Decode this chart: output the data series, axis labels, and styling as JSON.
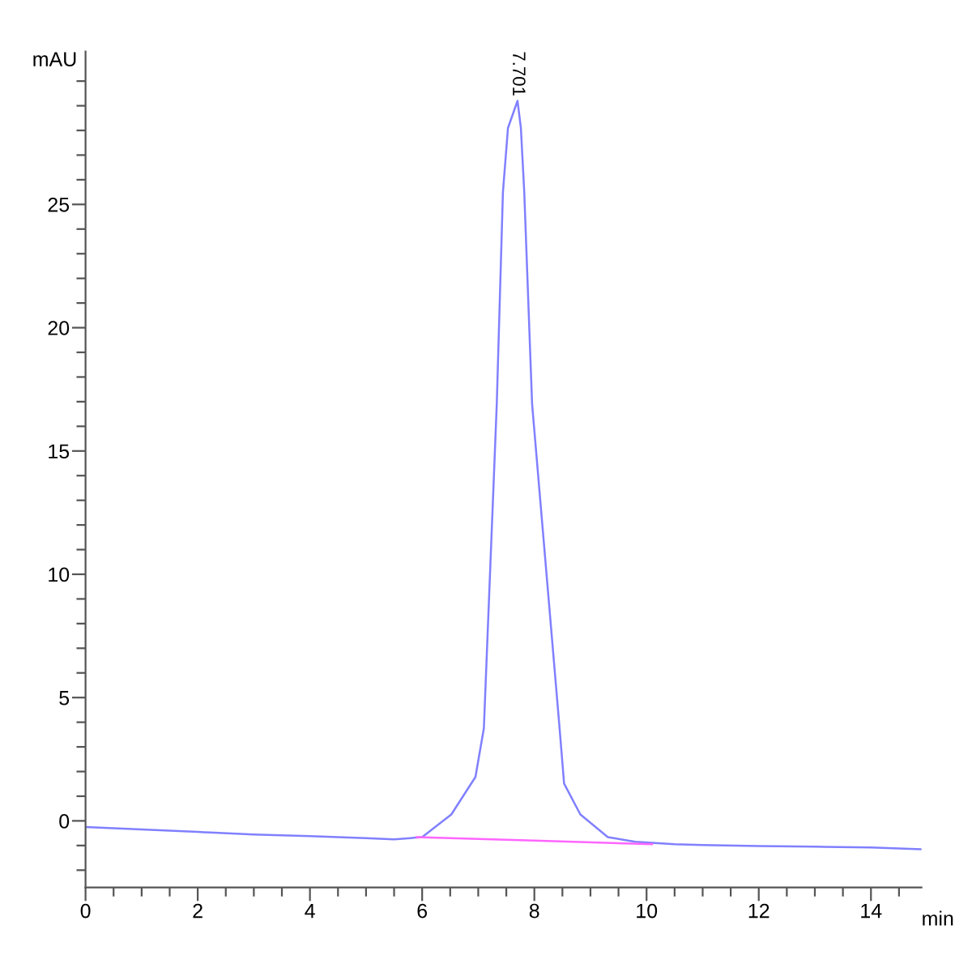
{
  "chart_data": {
    "type": "line",
    "xlabel": "min",
    "ylabel": "mAU",
    "xlim": [
      0,
      14.9
    ],
    "ylim": [
      -2.7,
      31.2
    ],
    "xticks": [
      0,
      {
        "value": 0.5,
        "label": null
      },
      {
        "value": 1,
        "label": null
      },
      {
        "value": 1.5,
        "label": null
      },
      2,
      {
        "value": 2.5,
        "label": null
      },
      {
        "value": 3,
        "label": null
      },
      {
        "value": 3.5,
        "label": null
      },
      4,
      {
        "value": 4.5,
        "label": null
      },
      {
        "value": 5,
        "label": null
      },
      {
        "value": 5.5,
        "label": null
      },
      6,
      {
        "value": 6.5,
        "label": null
      },
      {
        "value": 7,
        "label": null
      },
      {
        "value": 7.5,
        "label": null
      },
      8,
      {
        "value": 8.5,
        "label": null
      },
      {
        "value": 9,
        "label": null
      },
      {
        "value": 9.5,
        "label": null
      },
      10,
      {
        "value": 10.5,
        "label": null
      },
      {
        "value": 11,
        "label": null
      },
      {
        "value": 11.5,
        "label": null
      },
      12,
      {
        "value": 12.5,
        "label": null
      },
      {
        "value": 13,
        "label": null
      },
      {
        "value": 13.5,
        "label": null
      },
      14,
      {
        "value": 14.5,
        "label": null
      }
    ],
    "yticks": [
      {
        "value": -2,
        "label": null
      },
      {
        "value": -1,
        "label": null
      },
      0,
      {
        "value": 1,
        "label": null
      },
      {
        "value": 2,
        "label": null
      },
      {
        "value": 3,
        "label": null
      },
      {
        "value": 4,
        "label": null
      },
      5,
      {
        "value": 6,
        "label": null
      },
      {
        "value": 7,
        "label": null
      },
      {
        "value": 8,
        "label": null
      },
      {
        "value": 9,
        "label": null
      },
      10,
      {
        "value": 11,
        "label": null
      },
      {
        "value": 12,
        "label": null
      },
      {
        "value": 13,
        "label": null
      },
      {
        "value": 14,
        "label": null
      },
      15,
      {
        "value": 16,
        "label": null
      },
      {
        "value": 17,
        "label": null
      },
      {
        "value": 18,
        "label": null
      },
      {
        "value": 19,
        "label": null
      },
      20,
      {
        "value": 21,
        "label": null
      },
      {
        "value": 22,
        "label": null
      },
      {
        "value": 23,
        "label": null
      },
      {
        "value": 24,
        "label": null
      },
      25,
      {
        "value": 26,
        "label": null
      },
      {
        "value": 27,
        "label": null
      },
      {
        "value": 28,
        "label": null
      },
      {
        "value": 29,
        "label": null
      },
      {
        "value": 30,
        "label": null
      }
    ],
    "grid": false,
    "legend": false,
    "series": [
      {
        "color": "#8080ff",
        "x": [
          0,
          1,
          2,
          3,
          4,
          5,
          5.5,
          6.0,
          6.52,
          6.95,
          7.1,
          7.33,
          7.44,
          7.53,
          7.7,
          7.76,
          7.82,
          7.96,
          8.45,
          8.53,
          8.82,
          9.31,
          9.8,
          10.5,
          11,
          12,
          13,
          14,
          14.9
        ],
        "values": [
          -0.25,
          -0.35,
          -0.45,
          -0.55,
          -0.62,
          -0.7,
          -0.75,
          -0.66,
          0.26,
          1.78,
          3.75,
          16.9,
          25.5,
          28.1,
          29.2,
          28.1,
          25.5,
          16.9,
          3.75,
          1.51,
          0.26,
          -0.66,
          -0.85,
          -0.95,
          -0.98,
          -1.02,
          -1.05,
          -1.08,
          -1.15
        ]
      },
      {
        "color": "#ff66ff",
        "x": [
          5.9,
          8.0,
          10.1
        ],
        "values": [
          -0.66,
          -0.8,
          -0.95
        ]
      }
    ],
    "annotations": [
      {
        "text": "7.701",
        "x": 7.701,
        "y": 29.2
      }
    ]
  }
}
